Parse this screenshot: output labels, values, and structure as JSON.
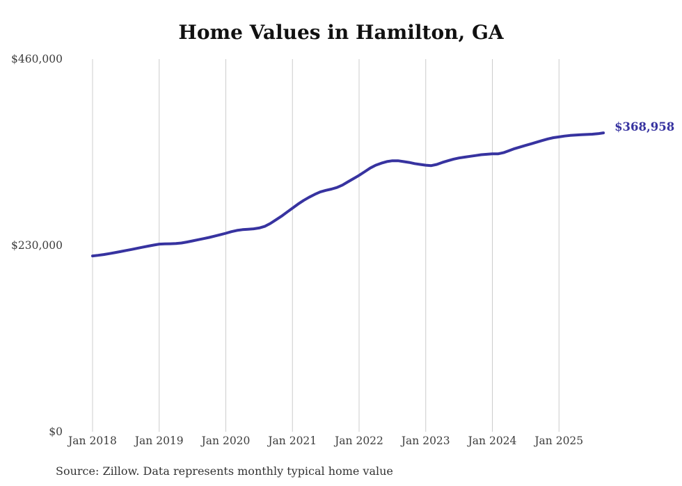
{
  "chart_data": {
    "type": "line",
    "title": "Home Values in Hamilton, GA",
    "xlabel": "",
    "ylabel": "",
    "ylim": [
      0,
      460000
    ],
    "grid": "vertical-only",
    "legend": "none",
    "y_ticks": [
      {
        "label": "$0",
        "value": 0
      },
      {
        "label": "$230,000",
        "value": 230000
      },
      {
        "label": "$460,000",
        "value": 460000
      }
    ],
    "x_ticks": [
      "Jan 2018",
      "Jan 2019",
      "Jan 2020",
      "Jan 2021",
      "Jan 2022",
      "Jan 2023",
      "Jan 2024",
      "Jan 2025"
    ],
    "end_label": "$368,958",
    "line_color": "#3733a0",
    "series": [
      {
        "name": "Monthly typical home value",
        "months": [
          "Jan 2018",
          "Feb 2018",
          "Mar 2018",
          "Apr 2018",
          "May 2018",
          "Jun 2018",
          "Jul 2018",
          "Aug 2018",
          "Sep 2018",
          "Oct 2018",
          "Nov 2018",
          "Dec 2018",
          "Jan 2019",
          "Feb 2019",
          "Mar 2019",
          "Apr 2019",
          "May 2019",
          "Jun 2019",
          "Jul 2019",
          "Aug 2019",
          "Sep 2019",
          "Oct 2019",
          "Nov 2019",
          "Dec 2019",
          "Jan 2020",
          "Feb 2020",
          "Mar 2020",
          "Apr 2020",
          "May 2020",
          "Jun 2020",
          "Jul 2020",
          "Aug 2020",
          "Sep 2020",
          "Oct 2020",
          "Nov 2020",
          "Dec 2020",
          "Jan 2021",
          "Feb 2021",
          "Mar 2021",
          "Apr 2021",
          "May 2021",
          "Jun 2021",
          "Jul 2021",
          "Aug 2021",
          "Sep 2021",
          "Oct 2021",
          "Nov 2021",
          "Dec 2021",
          "Jan 2022",
          "Feb 2022",
          "Mar 2022",
          "Apr 2022",
          "May 2022",
          "Jun 2022",
          "Jul 2022",
          "Aug 2022",
          "Sep 2022",
          "Oct 2022",
          "Nov 2022",
          "Dec 2022",
          "Jan 2023",
          "Feb 2023",
          "Mar 2023",
          "Apr 2023",
          "May 2023",
          "Jun 2023",
          "Jul 2023",
          "Aug 2023",
          "Sep 2023",
          "Oct 2023",
          "Nov 2023",
          "Dec 2023",
          "Jan 2024",
          "Feb 2024",
          "Mar 2024",
          "Apr 2024",
          "May 2024",
          "Jun 2024",
          "Jul 2024",
          "Aug 2024",
          "Sep 2024",
          "Oct 2024",
          "Nov 2024",
          "Dec 2024",
          "Jan 2025",
          "Feb 2025",
          "Mar 2025",
          "Apr 2025",
          "May 2025",
          "Jun 2025",
          "Jul 2025",
          "Aug 2025",
          "Sep 2025"
        ],
        "values": [
          217000,
          217800,
          218800,
          219900,
          221100,
          222400,
          223700,
          225000,
          226400,
          227800,
          229100,
          230400,
          231600,
          231900,
          232100,
          232300,
          233000,
          234200,
          235600,
          237000,
          238400,
          239900,
          241500,
          243200,
          245000,
          247000,
          248500,
          249500,
          250000,
          250500,
          251500,
          253500,
          257000,
          261500,
          266000,
          271000,
          276000,
          281000,
          285500,
          289500,
          293000,
          296000,
          298000,
          299500,
          301500,
          304500,
          308500,
          312500,
          316500,
          321000,
          325500,
          329000,
          331500,
          333500,
          334500,
          334500,
          333500,
          332500,
          331000,
          330000,
          329000,
          328500,
          330000,
          332500,
          334500,
          336500,
          338000,
          339000,
          340000,
          341000,
          342000,
          342500,
          343000,
          343000,
          344500,
          347000,
          349500,
          351500,
          353500,
          355500,
          357500,
          359500,
          361500,
          363000,
          364000,
          365000,
          365800,
          366300,
          366700,
          367000,
          367300,
          367900,
          368958
        ],
        "final_value": 368958
      }
    ]
  },
  "source_note": "Source: Zillow. Data represents monthly typical home value",
  "colors": {
    "background": "#ffffff",
    "gridline": "#cccccc",
    "axis_text": "#3d3d3d",
    "title_text": "#111111",
    "line": "#3733a0"
  }
}
